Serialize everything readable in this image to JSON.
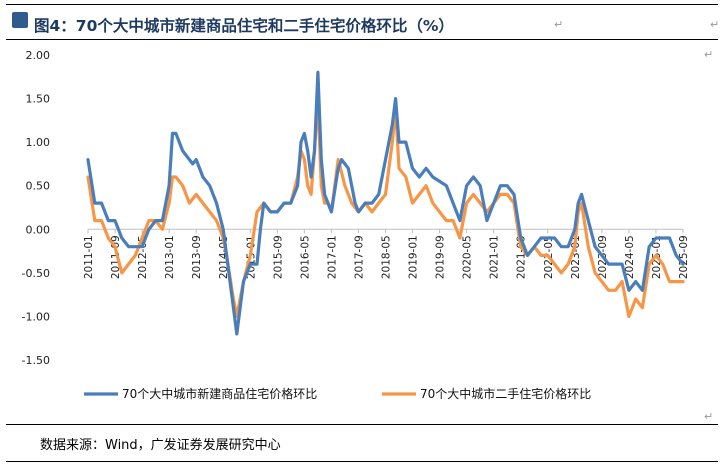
{
  "title": "图4：70个大中城市新建商品住宅和二手住宅价格环比（%）",
  "source": "数据来源：Wind，广发证券发展研究中心",
  "colors": {
    "new": "#4a7ebb",
    "second": "#f79646",
    "title": "#1e3a5f"
  },
  "chart_data": {
    "type": "line",
    "title": "70个大中城市新建商品住宅和二手住宅价格环比（%）",
    "xlabel": "",
    "ylabel": "%",
    "ylim": [
      -1.5,
      2.0
    ],
    "yticks": [
      "2.00",
      "1.50",
      "1.00",
      "0.50",
      "0.00",
      "-0.50",
      "-1.00",
      "-1.50"
    ],
    "x_start": "2011-01",
    "x_end": "2025-09",
    "x_ticks": [
      "2011-01",
      "2011-09",
      "2012-05",
      "2013-01",
      "2013-09",
      "2014-05",
      "2015-01",
      "2015-09",
      "2016-05",
      "2017-01",
      "2017-09",
      "2018-05",
      "2019-01",
      "2019-09",
      "2020-05",
      "2021-01",
      "2021-09",
      "2022-05",
      "2023-01",
      "2023-09",
      "2024-05",
      "2025-01",
      "2025-09"
    ],
    "legend_position": "bottom",
    "series": [
      {
        "name": "70个大中城市新建商品住宅价格环比",
        "points": [
          [
            "2011-01",
            0.8
          ],
          [
            "2011-03",
            0.3
          ],
          [
            "2011-05",
            0.3
          ],
          [
            "2011-07",
            0.1
          ],
          [
            "2011-09",
            0.1
          ],
          [
            "2011-11",
            -0.1
          ],
          [
            "2012-01",
            -0.2
          ],
          [
            "2012-03",
            -0.2
          ],
          [
            "2012-05",
            -0.2
          ],
          [
            "2012-07",
            0.0
          ],
          [
            "2012-09",
            0.1
          ],
          [
            "2012-11",
            0.1
          ],
          [
            "2013-01",
            0.5
          ],
          [
            "2013-02",
            1.1
          ],
          [
            "2013-03",
            1.1
          ],
          [
            "2013-05",
            0.9
          ],
          [
            "2013-07",
            0.8
          ],
          [
            "2013-08",
            0.75
          ],
          [
            "2013-09",
            0.8
          ],
          [
            "2013-11",
            0.6
          ],
          [
            "2014-01",
            0.5
          ],
          [
            "2014-03",
            0.3
          ],
          [
            "2014-05",
            0.0
          ],
          [
            "2014-06",
            -0.3
          ],
          [
            "2014-08",
            -0.9
          ],
          [
            "2014-09",
            -1.2
          ],
          [
            "2014-11",
            -0.6
          ],
          [
            "2015-01",
            -0.4
          ],
          [
            "2015-03",
            -0.4
          ],
          [
            "2015-04",
            0.0
          ],
          [
            "2015-05",
            0.3
          ],
          [
            "2015-07",
            0.2
          ],
          [
            "2015-09",
            0.2
          ],
          [
            "2015-11",
            0.3
          ],
          [
            "2016-01",
            0.3
          ],
          [
            "2016-03",
            0.5
          ],
          [
            "2016-04",
            1.0
          ],
          [
            "2016-05",
            1.1
          ],
          [
            "2016-06",
            0.9
          ],
          [
            "2016-07",
            0.6
          ],
          [
            "2016-08",
            0.9
          ],
          [
            "2016-09",
            1.8
          ],
          [
            "2016-10",
            0.8
          ],
          [
            "2016-11",
            0.4
          ],
          [
            "2016-12",
            0.3
          ],
          [
            "2017-01",
            0.2
          ],
          [
            "2017-03",
            0.7
          ],
          [
            "2017-04",
            0.8
          ],
          [
            "2017-06",
            0.7
          ],
          [
            "2017-08",
            0.3
          ],
          [
            "2017-09",
            0.2
          ],
          [
            "2017-11",
            0.3
          ],
          [
            "2018-01",
            0.3
          ],
          [
            "2018-03",
            0.4
          ],
          [
            "2018-05",
            0.8
          ],
          [
            "2018-07",
            1.2
          ],
          [
            "2018-08",
            1.5
          ],
          [
            "2018-09",
            1.0
          ],
          [
            "2018-11",
            1.0
          ],
          [
            "2019-01",
            0.7
          ],
          [
            "2019-03",
            0.6
          ],
          [
            "2019-05",
            0.7
          ],
          [
            "2019-07",
            0.6
          ],
          [
            "2019-09",
            0.55
          ],
          [
            "2019-11",
            0.5
          ],
          [
            "2020-01",
            0.3
          ],
          [
            "2020-03",
            0.1
          ],
          [
            "2020-05",
            0.5
          ],
          [
            "2020-07",
            0.6
          ],
          [
            "2020-09",
            0.5
          ],
          [
            "2020-11",
            0.1
          ],
          [
            "2021-01",
            0.3
          ],
          [
            "2021-03",
            0.5
          ],
          [
            "2021-05",
            0.5
          ],
          [
            "2021-07",
            0.4
          ],
          [
            "2021-09",
            -0.1
          ],
          [
            "2021-11",
            -0.3
          ],
          [
            "2022-01",
            -0.2
          ],
          [
            "2022-03",
            -0.1
          ],
          [
            "2022-05",
            -0.1
          ],
          [
            "2022-07",
            -0.1
          ],
          [
            "2022-09",
            -0.2
          ],
          [
            "2022-11",
            -0.2
          ],
          [
            "2023-01",
            0.0
          ],
          [
            "2023-02",
            0.3
          ],
          [
            "2023-03",
            0.4
          ],
          [
            "2023-05",
            0.1
          ],
          [
            "2023-07",
            -0.2
          ],
          [
            "2023-09",
            -0.3
          ],
          [
            "2023-11",
            -0.4
          ],
          [
            "2024-01",
            -0.4
          ],
          [
            "2024-03",
            -0.4
          ],
          [
            "2024-05",
            -0.7
          ],
          [
            "2024-07",
            -0.6
          ],
          [
            "2024-09",
            -0.7
          ],
          [
            "2024-11",
            -0.2
          ],
          [
            "2025-01",
            -0.1
          ],
          [
            "2025-03",
            -0.1
          ],
          [
            "2025-05",
            -0.1
          ],
          [
            "2025-07",
            -0.3
          ],
          [
            "2025-09",
            -0.4
          ]
        ]
      },
      {
        "name": "70个大中城市二手住宅价格环比",
        "points": [
          [
            "2011-01",
            0.6
          ],
          [
            "2011-03",
            0.1
          ],
          [
            "2011-05",
            0.1
          ],
          [
            "2011-07",
            -0.1
          ],
          [
            "2011-09",
            -0.2
          ],
          [
            "2011-11",
            -0.5
          ],
          [
            "2012-01",
            -0.4
          ],
          [
            "2012-03",
            -0.3
          ],
          [
            "2012-05",
            -0.1
          ],
          [
            "2012-07",
            0.1
          ],
          [
            "2012-09",
            0.1
          ],
          [
            "2012-11",
            0.0
          ],
          [
            "2013-01",
            0.3
          ],
          [
            "2013-02",
            0.6
          ],
          [
            "2013-03",
            0.6
          ],
          [
            "2013-05",
            0.5
          ],
          [
            "2013-07",
            0.3
          ],
          [
            "2013-09",
            0.4
          ],
          [
            "2013-11",
            0.3
          ],
          [
            "2014-01",
            0.2
          ],
          [
            "2014-03",
            0.1
          ],
          [
            "2014-05",
            -0.1
          ],
          [
            "2014-06",
            -0.3
          ],
          [
            "2014-08",
            -0.8
          ],
          [
            "2014-09",
            -1.0
          ],
          [
            "2014-11",
            -0.6
          ],
          [
            "2015-01",
            -0.3
          ],
          [
            "2015-03",
            0.2
          ],
          [
            "2015-05",
            0.3
          ],
          [
            "2015-07",
            0.2
          ],
          [
            "2015-09",
            0.2
          ],
          [
            "2015-11",
            0.3
          ],
          [
            "2016-01",
            0.3
          ],
          [
            "2016-03",
            0.6
          ],
          [
            "2016-04",
            0.9
          ],
          [
            "2016-05",
            0.8
          ],
          [
            "2016-06",
            0.5
          ],
          [
            "2016-07",
            0.4
          ],
          [
            "2016-08",
            0.9
          ],
          [
            "2016-09",
            1.5
          ],
          [
            "2016-10",
            0.5
          ],
          [
            "2016-11",
            0.3
          ],
          [
            "2016-12",
            0.3
          ],
          [
            "2017-01",
            0.2
          ],
          [
            "2017-03",
            0.8
          ],
          [
            "2017-05",
            0.5
          ],
          [
            "2017-07",
            0.3
          ],
          [
            "2017-09",
            0.2
          ],
          [
            "2017-11",
            0.3
          ],
          [
            "2018-01",
            0.2
          ],
          [
            "2018-03",
            0.3
          ],
          [
            "2018-05",
            0.4
          ],
          [
            "2018-07",
            1.0
          ],
          [
            "2018-08",
            1.4
          ],
          [
            "2018-09",
            0.7
          ],
          [
            "2018-11",
            0.6
          ],
          [
            "2019-01",
            0.3
          ],
          [
            "2019-03",
            0.4
          ],
          [
            "2019-05",
            0.5
          ],
          [
            "2019-07",
            0.3
          ],
          [
            "2019-09",
            0.2
          ],
          [
            "2019-11",
            0.1
          ],
          [
            "2020-01",
            0.1
          ],
          [
            "2020-03",
            -0.1
          ],
          [
            "2020-05",
            0.3
          ],
          [
            "2020-07",
            0.4
          ],
          [
            "2020-09",
            0.3
          ],
          [
            "2020-11",
            0.2
          ],
          [
            "2021-01",
            0.3
          ],
          [
            "2021-03",
            0.4
          ],
          [
            "2021-05",
            0.4
          ],
          [
            "2021-07",
            0.3
          ],
          [
            "2021-09",
            -0.2
          ],
          [
            "2021-11",
            -0.3
          ],
          [
            "2022-01",
            -0.2
          ],
          [
            "2022-03",
            -0.3
          ],
          [
            "2022-05",
            -0.3
          ],
          [
            "2022-07",
            -0.4
          ],
          [
            "2022-09",
            -0.5
          ],
          [
            "2022-11",
            -0.4
          ],
          [
            "2023-01",
            -0.2
          ],
          [
            "2023-02",
            0.2
          ],
          [
            "2023-03",
            0.3
          ],
          [
            "2023-05",
            -0.2
          ],
          [
            "2023-07",
            -0.5
          ],
          [
            "2023-09",
            -0.6
          ],
          [
            "2023-11",
            -0.7
          ],
          [
            "2024-01",
            -0.7
          ],
          [
            "2024-03",
            -0.6
          ],
          [
            "2024-05",
            -1.0
          ],
          [
            "2024-07",
            -0.8
          ],
          [
            "2024-09",
            -0.9
          ],
          [
            "2024-11",
            -0.4
          ],
          [
            "2025-01",
            -0.3
          ],
          [
            "2025-03",
            -0.4
          ],
          [
            "2025-05",
            -0.6
          ],
          [
            "2025-07",
            -0.6
          ],
          [
            "2025-09",
            -0.6
          ]
        ]
      }
    ]
  }
}
